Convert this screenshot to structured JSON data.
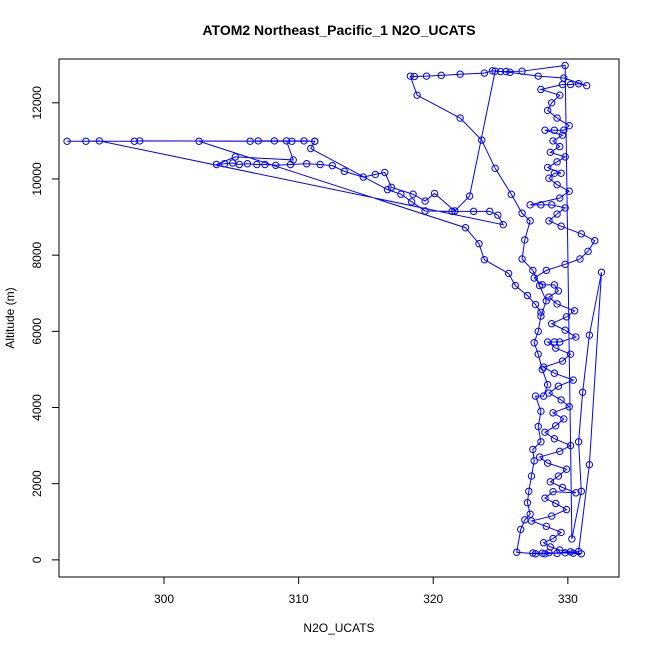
{
  "chart_data": {
    "type": "scatter",
    "title": "ATOM2 Northeast_Pacific_1 N2O_UCATS",
    "xlabel": "N2O_UCATS",
    "ylabel": "Altitude (m)",
    "xlim": [
      292.2,
      333.8
    ],
    "ylim": [
      -450,
      13150
    ],
    "x_ticks": [
      300,
      310,
      320,
      330
    ],
    "y_ticks": [
      0,
      2000,
      4000,
      6000,
      8000,
      10000,
      12000
    ],
    "x_tick_labels": [
      "300",
      "310",
      "320",
      "330"
    ],
    "y_tick_labels": [
      "0",
      "2000",
      "4000",
      "6000",
      "8000",
      "10000",
      "12000"
    ],
    "grid": false,
    "legend": "none",
    "marker": "open-circle",
    "connected": true,
    "color": "#0000ff",
    "series": [
      {
        "points": [
          [
            327.4,
            180
          ],
          [
            328.1,
            175
          ],
          [
            328.6,
            190
          ],
          [
            329.2,
            170
          ],
          [
            329.8,
            185
          ],
          [
            330.4,
            175
          ],
          [
            331.0,
            160
          ],
          [
            330.2,
            210
          ],
          [
            329.4,
            260
          ],
          [
            328.7,
            340
          ],
          [
            328.2,
            450
          ],
          [
            328.9,
            560
          ],
          [
            329.5,
            720
          ],
          [
            328.4,
            880
          ],
          [
            327.3,
            1020
          ],
          [
            328.8,
            1150
          ],
          [
            329.9,
            1320
          ],
          [
            329.1,
            1480
          ],
          [
            328.3,
            1620
          ],
          [
            328.9,
            1790
          ],
          [
            330.6,
            1760
          ],
          [
            329.6,
            1900
          ],
          [
            328.7,
            2050
          ],
          [
            329.3,
            2200
          ],
          [
            329.9,
            2380
          ],
          [
            328.5,
            2540
          ],
          [
            327.9,
            2700
          ],
          [
            329.4,
            2850
          ],
          [
            330.2,
            3000
          ],
          [
            329.0,
            3180
          ],
          [
            328.3,
            3350
          ],
          [
            329.1,
            3520
          ],
          [
            329.7,
            3700
          ],
          [
            328.9,
            3860
          ],
          [
            330.1,
            4020
          ],
          [
            329.5,
            4200
          ],
          [
            328.6,
            4380
          ],
          [
            329.3,
            4560
          ],
          [
            330.4,
            4720
          ],
          [
            329.0,
            4900
          ],
          [
            328.2,
            5060
          ],
          [
            329.6,
            5220
          ],
          [
            330.2,
            5400
          ],
          [
            329.1,
            5560
          ],
          [
            328.5,
            5720
          ],
          [
            329.0,
            5720
          ],
          [
            329.4,
            5720
          ],
          [
            330.6,
            5850
          ],
          [
            329.8,
            6030
          ],
          [
            328.8,
            6200
          ],
          [
            329.9,
            6380
          ],
          [
            330.5,
            6540
          ],
          [
            329.2,
            6720
          ],
          [
            328.6,
            6900
          ],
          [
            329.3,
            7060
          ],
          [
            329.0,
            7220
          ],
          [
            328.1,
            7220
          ],
          [
            327.5,
            7400
          ],
          [
            328.4,
            7600
          ],
          [
            329.8,
            7760
          ],
          [
            330.9,
            7900
          ],
          [
            331.5,
            8100
          ],
          [
            332.0,
            8380
          ],
          [
            331.0,
            8560
          ],
          [
            329.5,
            8760
          ],
          [
            328.6,
            8900
          ],
          [
            329.2,
            9080
          ],
          [
            329.8,
            9240
          ],
          [
            328.8,
            9320
          ],
          [
            328.0,
            9320
          ],
          [
            327.2,
            9320
          ],
          [
            329.4,
            9500
          ],
          [
            330.1,
            9680
          ],
          [
            329.2,
            9850
          ],
          [
            328.6,
            10020
          ],
          [
            329.0,
            10150
          ],
          [
            329.5,
            10150
          ],
          [
            328.5,
            10300
          ],
          [
            329.2,
            10450
          ],
          [
            329.8,
            10580
          ],
          [
            328.7,
            10700
          ],
          [
            329.4,
            10850
          ],
          [
            328.9,
            11000
          ],
          [
            329.6,
            11150
          ],
          [
            328.3,
            11280
          ],
          [
            329.0,
            11280
          ],
          [
            329.7,
            11280
          ],
          [
            330.1,
            11400
          ],
          [
            329.2,
            11600
          ],
          [
            328.5,
            11800
          ],
          [
            328.8,
            12000
          ],
          [
            329.4,
            12200
          ],
          [
            328.0,
            12350
          ],
          [
            329.6,
            12480
          ],
          [
            330.2,
            12480
          ],
          [
            330.8,
            12500
          ],
          [
            331.4,
            12450
          ],
          [
            329.7,
            12650
          ],
          [
            327.8,
            12700
          ],
          [
            325.7,
            12800
          ],
          [
            325.0,
            12820
          ],
          [
            324.4,
            12840
          ],
          [
            323.8,
            12780
          ],
          [
            322.0,
            12750
          ],
          [
            320.6,
            12720
          ],
          [
            319.5,
            12700
          ],
          [
            318.6,
            12690
          ],
          [
            318.3,
            12700
          ],
          [
            318.8,
            12200
          ],
          [
            322.0,
            11600
          ],
          [
            323.6,
            11020
          ],
          [
            324.6,
            10280
          ],
          [
            325.8,
            9600
          ],
          [
            326.6,
            9100
          ],
          [
            327.2,
            8900
          ],
          [
            326.8,
            8400
          ],
          [
            326.6,
            7900
          ],
          [
            327.4,
            7600
          ],
          [
            327.9,
            7200
          ],
          [
            328.4,
            6800
          ],
          [
            328.0,
            6400
          ],
          [
            327.8,
            6000
          ],
          [
            327.5,
            5700
          ],
          [
            327.8,
            5400
          ],
          [
            328.1,
            5000
          ],
          [
            328.5,
            4600
          ],
          [
            328.2,
            4300
          ],
          [
            327.6,
            4300
          ],
          [
            328.0,
            3900
          ],
          [
            327.8,
            3500
          ],
          [
            328.0,
            3100
          ],
          [
            327.4,
            2900
          ],
          [
            327.5,
            2600
          ],
          [
            327.3,
            2200
          ],
          [
            327.1,
            1800
          ],
          [
            327.0,
            1500
          ],
          [
            327.2,
            1200
          ],
          [
            326.8,
            1050
          ],
          [
            326.5,
            800
          ],
          [
            326.2,
            200
          ],
          [
            327.6,
            160
          ],
          [
            328.3,
            160
          ],
          [
            330.8,
            220
          ],
          [
            331.6,
            2500
          ],
          [
            332.5,
            7550
          ],
          [
            331.6,
            5900
          ],
          [
            331.1,
            4400
          ],
          [
            330.8,
            3100
          ],
          [
            331.0,
            1800
          ],
          [
            330.3,
            550
          ],
          [
            329.8,
            12980
          ],
          [
            326.6,
            12830
          ],
          [
            325.4,
            12820
          ],
          [
            324.6,
            12830
          ],
          [
            322.7,
            9550
          ],
          [
            321.6,
            9160
          ],
          [
            320.1,
            9620
          ],
          [
            319.4,
            9420
          ],
          [
            318.5,
            9600
          ],
          [
            316.9,
            9780
          ],
          [
            316.4,
            10170
          ],
          [
            315.7,
            10120
          ],
          [
            314.8,
            10050
          ],
          [
            313.4,
            10200
          ],
          [
            312.5,
            10350
          ],
          [
            311.6,
            10380
          ],
          [
            310.6,
            10400
          ],
          [
            309.4,
            10380
          ],
          [
            308.3,
            10360
          ],
          [
            307.5,
            10380
          ],
          [
            306.9,
            10380
          ],
          [
            306.2,
            10400
          ],
          [
            305.6,
            10380
          ],
          [
            305.1,
            10420
          ],
          [
            304.5,
            10400
          ],
          [
            303.9,
            10380
          ],
          [
            305.3,
            10580
          ],
          [
            309.6,
            10500
          ],
          [
            309.1,
            11000
          ],
          [
            308.2,
            11000
          ],
          [
            307.0,
            11000
          ],
          [
            306.4,
            10990
          ],
          [
            310.4,
            11000
          ],
          [
            311.2,
            10990
          ],
          [
            310.9,
            10800
          ],
          [
            316.6,
            9720
          ],
          [
            317.6,
            9600
          ],
          [
            318.4,
            9400
          ],
          [
            319.4,
            9160
          ],
          [
            321.4,
            9150
          ],
          [
            323.0,
            9150
          ],
          [
            324.2,
            9150
          ],
          [
            324.8,
            9050
          ],
          [
            325.2,
            8800
          ],
          [
            295.2,
            11000
          ],
          [
            294.2,
            10990
          ],
          [
            292.8,
            10990
          ],
          [
            297.8,
            10990
          ],
          [
            298.2,
            11000
          ],
          [
            311.2,
            10990
          ],
          [
            309.5,
            10990
          ],
          [
            302.6,
            10990
          ],
          [
            322.4,
            8720
          ],
          [
            323.4,
            8300
          ],
          [
            323.8,
            7880
          ],
          [
            325.6,
            7520
          ],
          [
            326.1,
            7200
          ],
          [
            327.0,
            6940
          ],
          [
            327.6,
            6700
          ],
          [
            328.0,
            6500
          ]
        ]
      }
    ]
  }
}
